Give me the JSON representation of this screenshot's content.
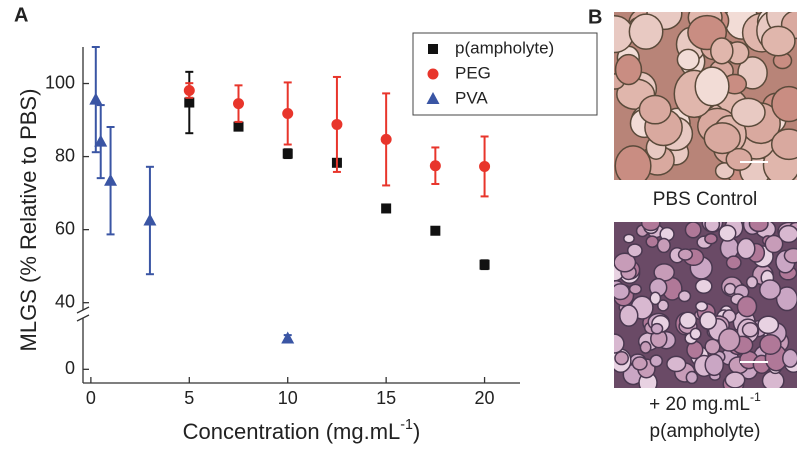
{
  "chart_data": {
    "type": "scatter",
    "panel_a": "A",
    "panel_b": "B",
    "x_label": {
      "text": "Concentration (mg.mL",
      "sup": "-1",
      "tail": ")"
    },
    "y_label": "MLGS (% Relative to PBS)",
    "xlim": [
      -0.4,
      21.8
    ],
    "xticks": [
      0,
      5,
      10,
      15,
      20
    ],
    "ylim": [
      -8,
      110
    ],
    "y_break": [
      30,
      38
    ],
    "yticks": [
      0,
      40,
      60,
      80,
      100
    ],
    "legend": "upper right",
    "series": [
      {
        "name": "p(ampholyte)",
        "color": "#111111",
        "marker": "square",
        "x": [
          5,
          7.5,
          10,
          12.5,
          15,
          17.5,
          20
        ],
        "values": [
          94.8,
          88.2,
          80.8,
          78.3,
          65.8,
          59.7,
          50.4
        ],
        "errors": [
          8.4,
          1,
          1.2,
          1,
          0.8,
          0.8,
          1.2
        ]
      },
      {
        "name": "PEG",
        "color": "#e8352b",
        "marker": "circle",
        "x": [
          5,
          7.5,
          10,
          12.5,
          15,
          17.5,
          20
        ],
        "values": [
          98.1,
          94.5,
          91.8,
          88.8,
          84.7,
          77.5,
          77.3
        ],
        "errors": [
          2,
          5,
          8.5,
          13,
          12.6,
          5,
          8.2
        ]
      },
      {
        "name": "PVA",
        "color": "#3a55a4",
        "marker": "triangle",
        "x": [
          0.25,
          0.5,
          1,
          3,
          10
        ],
        "values": [
          95.6,
          84.1,
          73.4,
          62.5,
          18
        ],
        "errors": [
          14.4,
          10,
          14.7,
          14.7,
          2
        ]
      }
    ],
    "images": [
      {
        "caption": "PBS Control"
      },
      {
        "caption": {
          "line1": "+ 20 mg.mL",
          "sup": "-1",
          "line2": "p(ampholyte)"
        }
      }
    ]
  }
}
